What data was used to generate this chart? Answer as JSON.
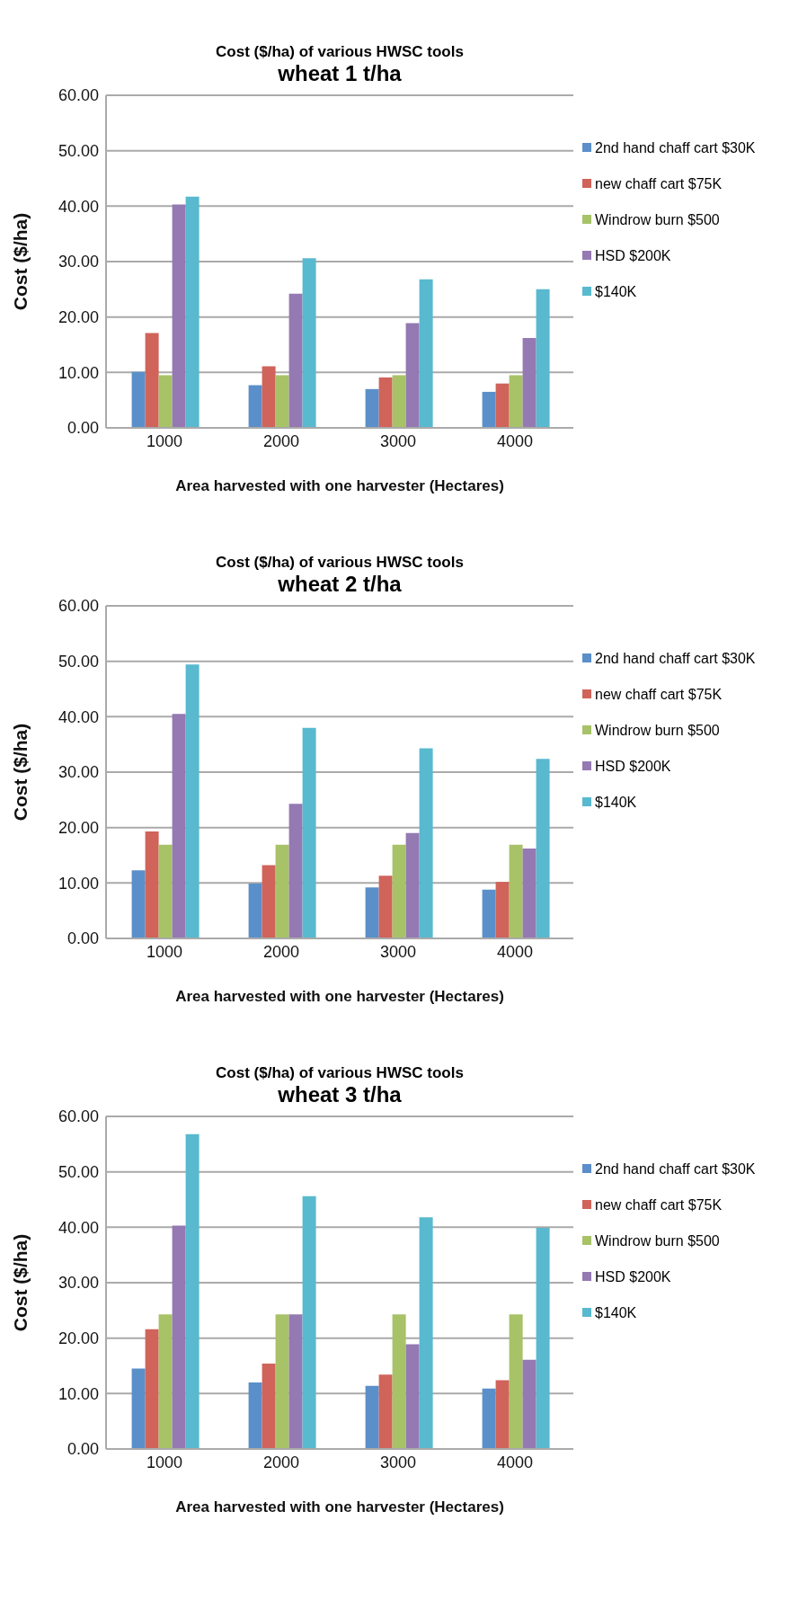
{
  "chart_data": [
    {
      "type": "bar",
      "title": "Cost ($/ha) of various HWSC tools",
      "subtitle": "wheat 1 t/ha",
      "xlabel": "Area harvested with one harvester (Hectares)",
      "ylabel": "Cost ($/ha)",
      "categories": [
        "1000",
        "2000",
        "3000",
        "4000"
      ],
      "ylim": [
        0,
        60
      ],
      "yticks": [
        {
          "value": 0,
          "label": "0.00"
        },
        {
          "value": 10,
          "label": "10.00"
        },
        {
          "value": 20,
          "label": "20.00"
        },
        {
          "value": 30,
          "label": "30.00"
        },
        {
          "value": 40,
          "label": "40.00"
        },
        {
          "value": 50,
          "label": "50.00"
        },
        {
          "value": 60,
          "label": "60.00"
        }
      ],
      "grid": "y",
      "legend": "right",
      "series": [
        {
          "name": "2nd hand chaff cart $30K",
          "color": "#5b8fc9",
          "values": [
            10.1,
            7.7,
            7.0,
            6.5
          ]
        },
        {
          "name": "new chaff cart $75K",
          "color": "#d0635a",
          "values": [
            17.1,
            11.1,
            9.1,
            8.0
          ]
        },
        {
          "name": "Windrow burn $500",
          "color": "#a7c267",
          "values": [
            9.5,
            9.5,
            9.5,
            9.5
          ]
        },
        {
          "name": "HSD $200K",
          "color": "#9479b2",
          "values": [
            40.3,
            24.2,
            18.9,
            16.2
          ]
        },
        {
          "name": "$140K",
          "color": "#58b9cf",
          "values": [
            41.7,
            30.6,
            26.8,
            25.0
          ]
        }
      ]
    },
    {
      "type": "bar",
      "title": "Cost ($/ha) of various HWSC tools",
      "subtitle": "wheat 2 t/ha",
      "xlabel": "Area harvested with one harvester (Hectares)",
      "ylabel": "Cost ($/ha)",
      "categories": [
        "1000",
        "2000",
        "3000",
        "4000"
      ],
      "ylim": [
        0,
        60
      ],
      "yticks": [
        {
          "value": 0,
          "label": "0.00"
        },
        {
          "value": 10,
          "label": "10.00"
        },
        {
          "value": 20,
          "label": "20.00"
        },
        {
          "value": 30,
          "label": "30.00"
        },
        {
          "value": 40,
          "label": "40.00"
        },
        {
          "value": 50,
          "label": "50.00"
        },
        {
          "value": 60,
          "label": "60.00"
        }
      ],
      "grid": "y",
      "legend": "right",
      "series": [
        {
          "name": "2nd hand chaff cart $30K",
          "color": "#5b8fc9",
          "values": [
            12.3,
            9.9,
            9.2,
            8.8
          ]
        },
        {
          "name": "new chaff cart $75K",
          "color": "#d0635a",
          "values": [
            19.3,
            13.2,
            11.3,
            10.2
          ]
        },
        {
          "name": "Windrow burn $500",
          "color": "#a7c267",
          "values": [
            16.9,
            16.9,
            16.9,
            16.9
          ]
        },
        {
          "name": "HSD $200K",
          "color": "#9479b2",
          "values": [
            40.5,
            24.3,
            19.0,
            16.2
          ]
        },
        {
          "name": "$140K",
          "color": "#58b9cf",
          "values": [
            49.4,
            38.0,
            34.3,
            32.4
          ]
        }
      ]
    },
    {
      "type": "bar",
      "title": "Cost ($/ha) of various HWSC tools",
      "subtitle": "wheat 3 t/ha",
      "xlabel": "Area harvested with one harvester (Hectares)",
      "ylabel": "Cost ($/ha)",
      "categories": [
        "1000",
        "2000",
        "3000",
        "4000"
      ],
      "ylim": [
        0,
        60
      ],
      "yticks": [
        {
          "value": 0,
          "label": "0.00"
        },
        {
          "value": 10,
          "label": "10.00"
        },
        {
          "value": 20,
          "label": "20.00"
        },
        {
          "value": 30,
          "label": "30.00"
        },
        {
          "value": 40,
          "label": "40.00"
        },
        {
          "value": 50,
          "label": "50.00"
        },
        {
          "value": 60,
          "label": "60.00"
        }
      ],
      "grid": "y",
      "legend": "right",
      "series": [
        {
          "name": "2nd hand chaff cart $30K",
          "color": "#5b8fc9",
          "values": [
            14.5,
            12.0,
            11.4,
            10.9
          ]
        },
        {
          "name": "new chaff cart $75K",
          "color": "#d0635a",
          "values": [
            21.6,
            15.4,
            13.4,
            12.4
          ]
        },
        {
          "name": "Windrow burn $500",
          "color": "#a7c267",
          "values": [
            24.3,
            24.3,
            24.3,
            24.3
          ]
        },
        {
          "name": "HSD $200K",
          "color": "#9479b2",
          "values": [
            40.3,
            24.3,
            18.9,
            16.1
          ]
        },
        {
          "name": "$140K",
          "color": "#58b9cf",
          "values": [
            56.8,
            45.6,
            41.8,
            39.9
          ]
        }
      ]
    }
  ]
}
